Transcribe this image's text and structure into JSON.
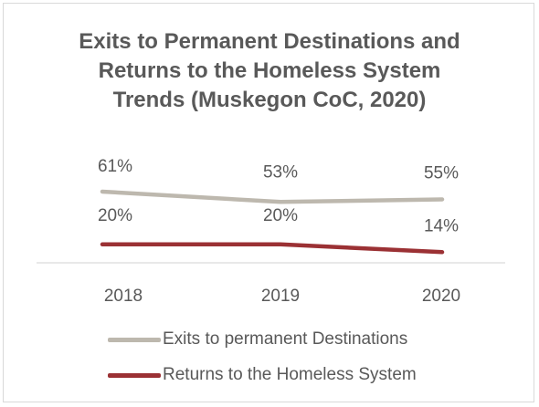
{
  "chart_data": {
    "type": "line",
    "title": [
      "Exits to Permanent Destinations and",
      "Returns to the Homeless System",
      "Trends (Muskegon CoC, 2020)"
    ],
    "categories": [
      "2018",
      "2019",
      "2020"
    ],
    "series": [
      {
        "name": "Exits to permanent Destinations",
        "values": [
          61,
          53,
          55
        ],
        "labels": [
          "61%",
          "53%",
          "55%"
        ],
        "color": "#bdb8ae"
      },
      {
        "name": "Returns to the Homeless System",
        "values": [
          20,
          20,
          14
        ],
        "labels": [
          "20%",
          "20%",
          "14%"
        ],
        "color": "#9b3134"
      }
    ],
    "xlabel": "",
    "ylabel": "",
    "ylim": [
      0,
      100
    ],
    "grid": false,
    "legend_position": "bottom"
  }
}
